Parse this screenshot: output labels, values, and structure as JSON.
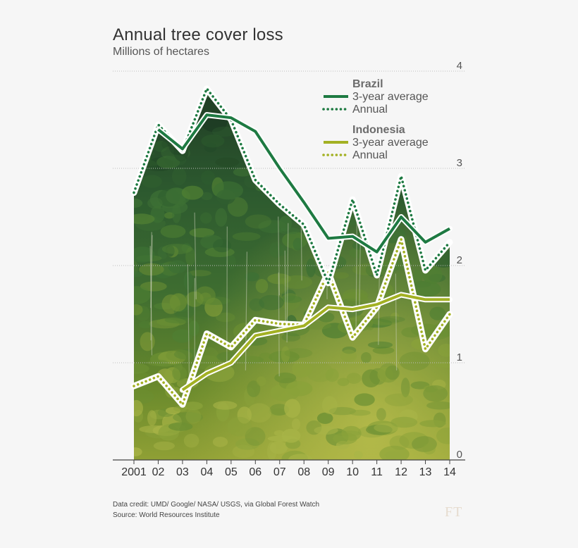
{
  "header": {
    "title": "Annual tree cover loss",
    "subtitle": "Millions of hectares"
  },
  "footer": {
    "credit_line": "Data credit: UMD/ Google/ NASA/ USGS, via Global Forest Watch",
    "source_line": "Source: World Resources Institute",
    "logo_text": "FT"
  },
  "chart_data": {
    "type": "line",
    "title": "Annual tree cover loss",
    "subtitle": "Millions of hectares",
    "xlabel": "",
    "ylabel": "",
    "x": [
      2001,
      2002,
      2003,
      2004,
      2005,
      2006,
      2007,
      2008,
      2009,
      2010,
      2011,
      2012,
      2013,
      2014
    ],
    "x_tick_labels": [
      "2001",
      "02",
      "03",
      "04",
      "05",
      "06",
      "07",
      "08",
      "09",
      "10",
      "11",
      "12",
      "13",
      "14"
    ],
    "ylim": [
      0,
      4
    ],
    "y_ticks": [
      0,
      1,
      2,
      3,
      4
    ],
    "grid": "horizontal dotted",
    "y_axis_side": "right",
    "legend_position": "top-right",
    "background": "rainforest photograph behind the plot area",
    "legend_groups": [
      {
        "name": "Brazil",
        "entries": [
          "3-year average",
          "Annual"
        ]
      },
      {
        "name": "Indonesia",
        "entries": [
          "3-year average",
          "Annual"
        ]
      }
    ],
    "series": [
      {
        "group": "Brazil",
        "name": "3-year average",
        "style": "solid",
        "color": "#1e7a42",
        "x": [
          2002,
          2003,
          2004,
          2005,
          2006,
          2007,
          2008,
          2009,
          2010,
          2011,
          2012,
          2013,
          2014
        ],
        "values": [
          3.4,
          3.2,
          3.55,
          3.52,
          3.38,
          3.0,
          2.65,
          2.28,
          2.3,
          2.14,
          2.5,
          2.24,
          2.38
        ]
      },
      {
        "group": "Brazil",
        "name": "Annual",
        "style": "dotted",
        "color": "#1e7a42",
        "x": [
          2001,
          2002,
          2003,
          2004,
          2005,
          2006,
          2007,
          2008,
          2009,
          2010,
          2011,
          2012,
          2013,
          2014
        ],
        "values": [
          2.75,
          3.45,
          3.18,
          3.82,
          3.5,
          2.88,
          2.63,
          2.42,
          1.82,
          2.68,
          1.9,
          2.92,
          1.95,
          2.24
        ]
      },
      {
        "group": "Indonesia",
        "name": "3-year average",
        "style": "solid",
        "color": "#a3b123",
        "x": [
          2003,
          2004,
          2005,
          2006,
          2007,
          2008,
          2009,
          2010,
          2011,
          2012,
          2013,
          2014
        ],
        "values": [
          0.72,
          0.89,
          1.0,
          1.28,
          1.33,
          1.38,
          1.57,
          1.55,
          1.6,
          1.7,
          1.65,
          1.65
        ]
      },
      {
        "group": "Indonesia",
        "name": "Annual",
        "style": "dotted",
        "color": "#a3b123",
        "x": [
          2001,
          2002,
          2003,
          2004,
          2005,
          2006,
          2007,
          2008,
          2009,
          2010,
          2011,
          2012,
          2013,
          2014
        ],
        "values": [
          0.76,
          0.86,
          0.57,
          1.3,
          1.16,
          1.44,
          1.4,
          1.39,
          1.93,
          1.26,
          1.57,
          2.27,
          1.14,
          1.5
        ]
      }
    ]
  },
  "colors": {
    "brazil": "#1e7a42",
    "indonesia": "#a3b123",
    "text": "#333333",
    "legend_heading": "#6b6b6b",
    "background": "#f6f6f6"
  }
}
